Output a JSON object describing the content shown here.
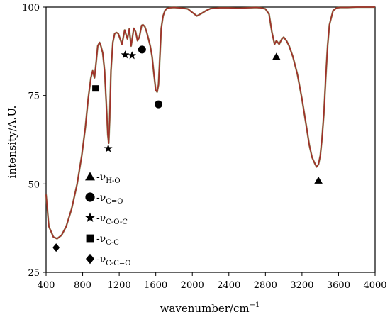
{
  "chart_data": {
    "type": "line",
    "title": "",
    "xlabel": "wavenumber/cm",
    "xlabel_superscript": "−1",
    "ylabel": "intensity/A.U.",
    "xlim": [
      400,
      4000
    ],
    "ylim": [
      25,
      100
    ],
    "x_ticks": [
      400,
      800,
      1200,
      1600,
      2000,
      2400,
      2800,
      3200,
      3600,
      4000
    ],
    "x_tick_labels": [
      "400",
      "800",
      "1200",
      "1600",
      "2000",
      "2400",
      "2800",
      "3200",
      "3600",
      "4000"
    ],
    "y_ticks": [
      25,
      50,
      75,
      100
    ],
    "y_tick_labels": [
      "25",
      "50",
      "75",
      "100"
    ],
    "grid": false,
    "legend_position": "bottom-left",
    "colors": {
      "line": "#a0322a",
      "line_shadow": "#4a7a2a",
      "marker": "#000000"
    },
    "series": [
      {
        "x": [
          400,
          430,
          480,
          520,
          570,
          620,
          680,
          740,
          790,
          830,
          860,
          890,
          910,
          930,
          950,
          965,
          985,
          1000,
          1020,
          1040,
          1060,
          1075,
          1085,
          1095,
          1110,
          1130,
          1150,
          1170,
          1190,
          1210,
          1230,
          1260,
          1290,
          1310,
          1330,
          1345,
          1360,
          1380,
          1400,
          1420,
          1445,
          1460,
          1480,
          1500,
          1520,
          1540,
          1560,
          1580,
          1600,
          1615,
          1630,
          1645,
          1660,
          1680,
          1700,
          1720,
          1750,
          1800,
          1850,
          1900,
          1950,
          2000,
          2050,
          2100,
          2150,
          2200,
          2300,
          2400,
          2500,
          2600,
          2700,
          2750,
          2800,
          2840,
          2870,
          2900,
          2920,
          2950,
          2980,
          3000,
          3030,
          3060,
          3100,
          3150,
          3200,
          3250,
          3280,
          3310,
          3340,
          3360,
          3380,
          3400,
          3420,
          3440,
          3460,
          3480,
          3500,
          3540,
          3580,
          3620,
          3660,
          3700,
          3800,
          3900,
          4000
        ],
        "values": [
          47,
          38,
          35,
          34.5,
          35.5,
          38,
          43,
          50,
          58,
          66,
          74,
          80,
          82,
          80,
          85,
          89,
          90,
          89,
          87,
          82,
          72,
          64,
          61.5,
          68,
          82,
          90,
          92.5,
          92.8,
          92.5,
          91,
          89.5,
          93.5,
          91,
          93.8,
          89,
          91.5,
          94,
          93,
          90.5,
          91.5,
          94.8,
          95,
          94.5,
          93,
          91,
          89,
          86,
          81,
          76.5,
          76,
          78,
          86,
          94,
          97.5,
          99,
          99.6,
          99.8,
          99.9,
          99.8,
          99.7,
          99.5,
          98.5,
          97.5,
          98.2,
          99,
          99.6,
          99.8,
          99.8,
          99.7,
          99.8,
          99.9,
          99.8,
          99.5,
          98,
          93,
          89.5,
          90.5,
          89.5,
          91,
          91.5,
          90.5,
          89,
          86,
          81,
          74,
          66,
          61,
          57.5,
          55.8,
          54.8,
          55.5,
          58,
          63,
          70,
          80,
          89,
          95,
          99,
          99.8,
          99.9,
          99.9,
          99.9,
          100,
          100,
          100
        ]
      }
    ],
    "markers": [
      {
        "shape": "diamond",
        "x": 510,
        "y": 32
      },
      {
        "shape": "square",
        "x": 940,
        "y": 77
      },
      {
        "shape": "star",
        "x": 1080,
        "y": 60
      },
      {
        "shape": "star",
        "x": 1265,
        "y": 86.5
      },
      {
        "shape": "star",
        "x": 1340,
        "y": 86.3
      },
      {
        "shape": "circle",
        "x": 1450,
        "y": 88
      },
      {
        "shape": "circle",
        "x": 1630,
        "y": 72.5
      },
      {
        "shape": "triangle",
        "x": 2920,
        "y": 86
      },
      {
        "shape": "triangle",
        "x": 3380,
        "y": 51
      }
    ],
    "legend": [
      {
        "shape": "triangle",
        "prefix": "-ν",
        "sub": "H-O"
      },
      {
        "shape": "circle",
        "prefix": "-ν",
        "sub": "C=O"
      },
      {
        "shape": "star",
        "prefix": "-ν",
        "sub": "C-O-C"
      },
      {
        "shape": "square",
        "prefix": "-ν",
        "sub": "C-C"
      },
      {
        "shape": "diamond",
        "prefix": "-ν",
        "sub": "C-C=O"
      }
    ]
  }
}
